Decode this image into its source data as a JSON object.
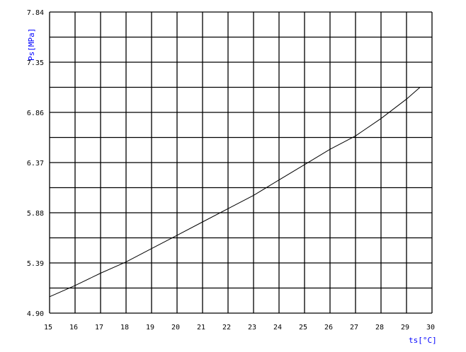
{
  "chart_data": {
    "type": "line",
    "title": "",
    "xlabel": "ts[°C]",
    "ylabel": "Ps[MPa]",
    "xlim": [
      15,
      30
    ],
    "ylim": [
      4.9,
      7.84
    ],
    "x_ticks": [
      "15",
      "16",
      "17",
      "18",
      "19",
      "20",
      "21",
      "22",
      "23",
      "24",
      "25",
      "26",
      "27",
      "28",
      "29",
      "30"
    ],
    "y_ticks": [
      "4.90",
      "5.39",
      "5.88",
      "6.37",
      "6.86",
      "7.35",
      "7.84"
    ],
    "grid": true,
    "series": [
      {
        "x": [
          15,
          16,
          17,
          18,
          19,
          20,
          21,
          22,
          23,
          24,
          25,
          26,
          27,
          28,
          29,
          29.53
        ],
        "y": [
          5.06,
          5.17,
          5.29,
          5.4,
          5.53,
          5.66,
          5.79,
          5.92,
          6.05,
          6.2,
          6.35,
          6.5,
          6.63,
          6.8,
          6.99,
          7.105
        ]
      }
    ],
    "colors": {
      "grid": "#000000",
      "line": "#000000",
      "axis_label": "#0000ff"
    }
  }
}
